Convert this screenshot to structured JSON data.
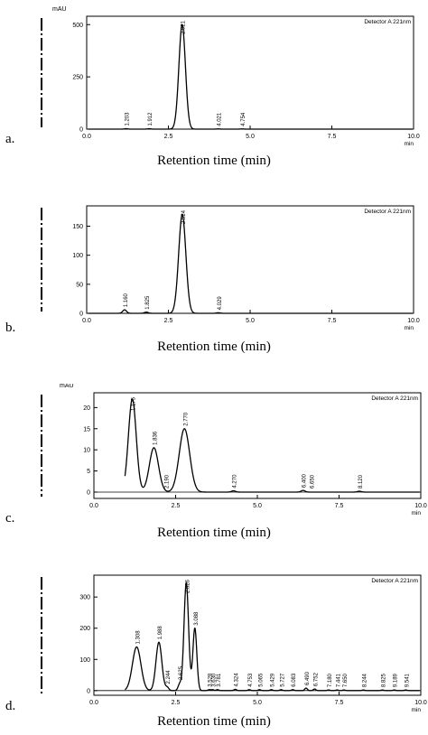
{
  "panels": [
    {
      "letter": "a.",
      "y_unit": "mAU",
      "detector": "Detector A 221nm",
      "xlabel": "Retention time (min)",
      "x_ticks": [
        "0.0",
        "2.5",
        "5.0",
        "7.5",
        "10.0"
      ],
      "x_unit": "min",
      "y_ticks": [
        "0",
        "250",
        "500"
      ]
    },
    {
      "letter": "b.",
      "y_unit": "",
      "detector": "Detector A 221nm",
      "xlabel": "Retention time (min)",
      "x_ticks": [
        "0.0",
        "2.5",
        "5.0",
        "7.5",
        "10.0"
      ],
      "x_unit": "min",
      "y_ticks": [
        "0",
        "50",
        "100",
        "150"
      ]
    },
    {
      "letter": "c.",
      "y_unit": "mAU",
      "detector": "Detector A 221nm",
      "xlabel": "Retention time (min)",
      "x_ticks": [
        "0.0",
        "2.5",
        "5.0",
        "7.5",
        "10.0"
      ],
      "x_unit": "min",
      "y_ticks": [
        "0",
        "5",
        "10",
        "15",
        "20"
      ]
    },
    {
      "letter": "d.",
      "y_unit": "",
      "detector": "Detector A 221nm",
      "xlabel": "Retention time (min)",
      "x_ticks": [
        "0.0",
        "2.5",
        "5.0",
        "7.5",
        "10.0"
      ],
      "x_unit": "min",
      "y_ticks": [
        "0",
        "100",
        "200",
        "300"
      ]
    }
  ],
  "chart_data": [
    {
      "type": "line",
      "xlabel": "Retention time (min)",
      "ylabel": "mAU",
      "xlim": [
        0,
        10
      ],
      "ylim": [
        0,
        540
      ],
      "peaks": [
        {
          "rt": 1.203,
          "label": "1.203",
          "height": 2,
          "width": 0.05
        },
        {
          "rt": 1.912,
          "label": "1.912",
          "height": 2,
          "width": 0.05
        },
        {
          "rt": 2.921,
          "label": "2.921",
          "height": 500,
          "width": 0.1
        },
        {
          "rt": 4.021,
          "label": "4.021",
          "height": 1,
          "width": 0.05
        },
        {
          "rt": 4.754,
          "label": "4.754",
          "height": 1,
          "width": 0.05
        }
      ]
    },
    {
      "type": "line",
      "xlabel": "Retention time (min)",
      "ylabel": "",
      "xlim": [
        0,
        10
      ],
      "ylim": [
        0,
        185
      ],
      "peaks": [
        {
          "rt": 1.16,
          "label": "1.160",
          "height": 6,
          "width": 0.06
        },
        {
          "rt": 1.825,
          "label": "1.825",
          "height": 2,
          "width": 0.06
        },
        {
          "rt": 2.924,
          "label": "2.924",
          "height": 170,
          "width": 0.11
        },
        {
          "rt": 4.029,
          "label": "4.029",
          "height": 1,
          "width": 0.06
        }
      ]
    },
    {
      "type": "line",
      "xlabel": "Retention time (min)",
      "ylabel": "mAU",
      "xlim": [
        0,
        10
      ],
      "ylim": [
        -1.5,
        23.5
      ],
      "peaks": [
        {
          "rt": 1.175,
          "label": "1.175",
          "height": 22,
          "width": 0.12
        },
        {
          "rt": 1.836,
          "label": "1.836",
          "height": 10.5,
          "width": 0.14
        },
        {
          "rt": 2.77,
          "label": "2.770",
          "height": 15,
          "width": 0.16
        },
        {
          "rt": 4.27,
          "label": "4.270",
          "height": 0.3,
          "width": 0.06
        },
        {
          "rt": 6.4,
          "label": "6.400",
          "height": 0.4,
          "width": 0.06
        },
        {
          "rt": 8.12,
          "label": "8.120",
          "height": 0.2,
          "width": 0.06
        }
      ],
      "unlabeled_values": [
        "2.190",
        "6.650"
      ]
    },
    {
      "type": "line",
      "xlabel": "Retention time (min)",
      "ylabel": "",
      "xlim": [
        0,
        10
      ],
      "ylim": [
        -15,
        370
      ],
      "peaks": [
        {
          "rt": 1.308,
          "label": "1.308",
          "height": 140,
          "width": 0.13
        },
        {
          "rt": 1.988,
          "label": "1.988",
          "height": 155,
          "width": 0.09
        },
        {
          "rt": 2.244,
          "label": "2.244",
          "height": 10,
          "width": 0.05
        },
        {
          "rt": 2.625,
          "label": "2.625",
          "height": 20,
          "width": 0.05
        },
        {
          "rt": 2.826,
          "label": "2.826",
          "height": 345,
          "width": 0.07
        },
        {
          "rt": 3.088,
          "label": "3.088",
          "height": 200,
          "width": 0.06
        },
        {
          "rt": 3.528,
          "label": "3.528",
          "height": 3,
          "width": 0.04
        },
        {
          "rt": 3.63,
          "label": "3.630",
          "height": 3,
          "width": 0.04
        },
        {
          "rt": 3.781,
          "label": "3.781",
          "height": 3,
          "width": 0.04
        },
        {
          "rt": 4.324,
          "label": "4.324",
          "height": 4,
          "width": 0.04
        },
        {
          "rt": 4.753,
          "label": "4.753",
          "height": 3,
          "width": 0.04
        },
        {
          "rt": 5.065,
          "label": "5.065",
          "height": 3,
          "width": 0.04
        },
        {
          "rt": 5.429,
          "label": "5.429",
          "height": 3,
          "width": 0.04
        },
        {
          "rt": 5.727,
          "label": "5.727",
          "height": 3,
          "width": 0.04
        },
        {
          "rt": 6.083,
          "label": "6.083",
          "height": 3,
          "width": 0.04
        },
        {
          "rt": 6.49,
          "label": "6.490",
          "height": 8,
          "width": 0.04
        },
        {
          "rt": 6.752,
          "label": "6.752",
          "height": 5,
          "width": 0.04
        },
        {
          "rt": 7.18,
          "label": "7.180",
          "height": 2,
          "width": 0.04
        },
        {
          "rt": 7.441,
          "label": "7.441",
          "height": 2,
          "width": 0.04
        },
        {
          "rt": 7.65,
          "label": "7.650",
          "height": 2,
          "width": 0.04
        },
        {
          "rt": 8.244,
          "label": "8.244",
          "height": 2,
          "width": 0.04
        },
        {
          "rt": 8.825,
          "label": "8.825",
          "height": 2,
          "width": 0.04
        },
        {
          "rt": 9.189,
          "label": "9.189",
          "height": 2,
          "width": 0.04
        },
        {
          "rt": 9.541,
          "label": "9.541",
          "height": 2,
          "width": 0.04
        }
      ]
    }
  ]
}
